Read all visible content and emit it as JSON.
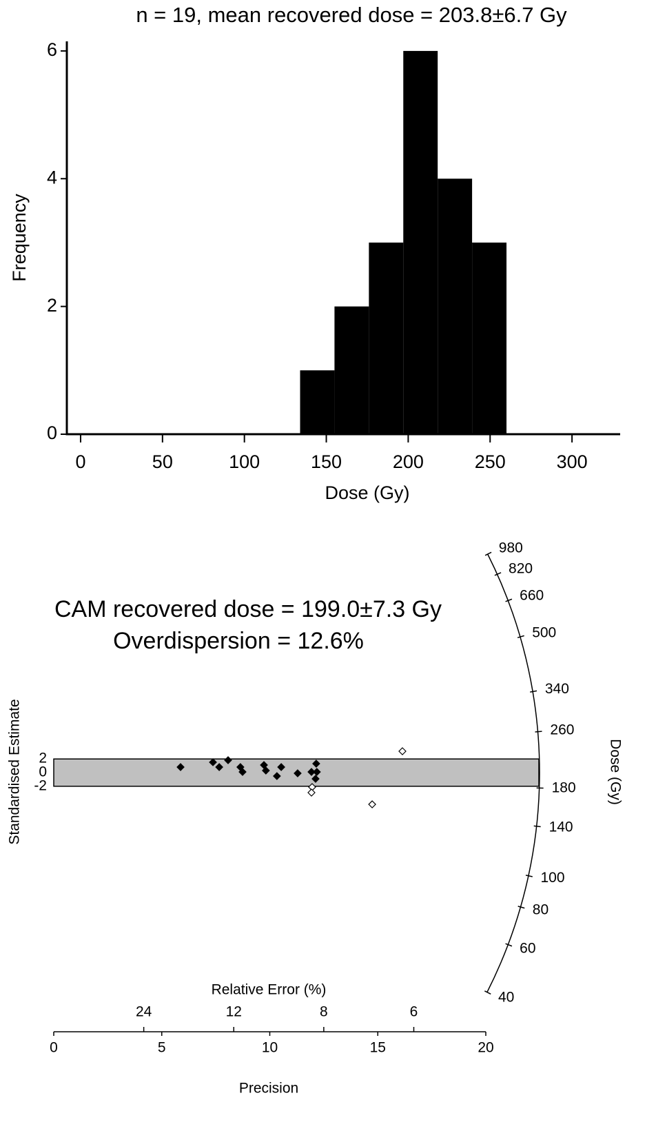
{
  "chart_data": [
    {
      "type": "histogram",
      "title": "n = 19, mean recovered dose = 203.8±6.7 Gy",
      "x_label": "Dose (Gy)",
      "y_label": "Frequency",
      "bins": [
        134,
        155,
        176,
        197,
        218,
        239,
        260
      ],
      "values": [
        1,
        2,
        3,
        6,
        4,
        3
      ],
      "color": "#000000",
      "xlim": [
        -8.4,
        329.4
      ],
      "xticks": [
        0,
        50,
        100,
        150,
        200,
        250,
        300
      ],
      "ylim": [
        0,
        6.15
      ],
      "yticks": [
        0,
        2,
        4,
        6
      ]
    },
    {
      "type": "radial",
      "title": "CAM recovered dose = 199.0±7.3 Gy",
      "subtitle": "Overdispersion = 12.6%",
      "central_dose": 199.0,
      "x_label": "Precision",
      "y_label": "Standardised Estimate",
      "x2_label": "Relative Error (%)",
      "dose_label": "Dose (Gy)",
      "xlim": [
        0,
        20
      ],
      "xticks": [
        0,
        5,
        10,
        15,
        20
      ],
      "x2ticks": [
        24,
        12,
        8,
        6
      ],
      "yticks": [
        2,
        0,
        -2
      ],
      "dose_ticks": [
        980,
        820,
        660,
        500,
        340,
        260,
        180,
        140,
        100,
        80,
        60,
        40
      ],
      "band_color": "#c0c0c0",
      "series": [
        {
          "marker": "filled",
          "color": "#000000",
          "x": [
            5.87,
            7.37,
            7.66,
            8.07,
            8.64,
            8.74,
            9.73,
            9.82,
            10.33,
            10.53,
            11.29,
            11.93,
            12.15,
            12.18,
            12.12
          ],
          "values": [
            0.81,
            1.52,
            0.81,
            1.82,
            0.81,
            0.1,
            1.11,
            0.3,
            -0.51,
            0.81,
            -0.1,
            0.1,
            1.31,
            0.1,
            -0.91
          ]
        },
        {
          "marker": "open",
          "color": "#000000",
          "x": [
            16.14,
            11.96,
            11.93,
            14.74
          ],
          "values": [
            3.13,
            -2.12,
            -2.93,
            -4.65
          ]
        }
      ]
    }
  ]
}
